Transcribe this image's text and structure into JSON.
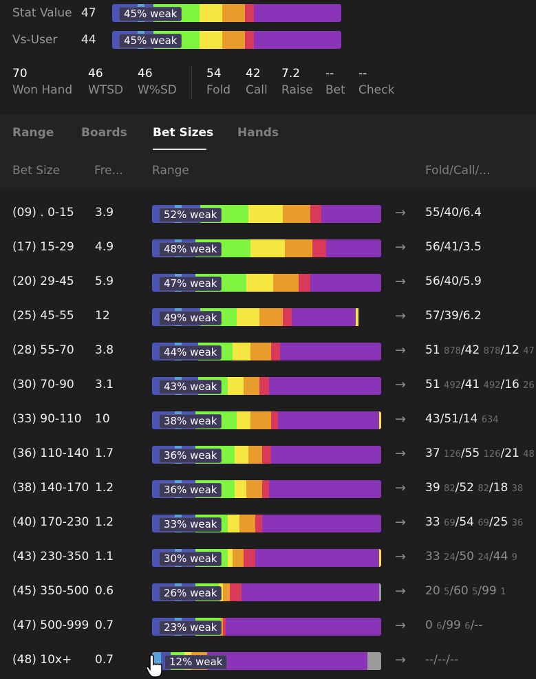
{
  "stats": [
    {
      "label": "Stat Value",
      "value": "47",
      "weak": "45% weak"
    },
    {
      "label": "Vs-User",
      "value": "44",
      "weak": "45% weak"
    }
  ],
  "summary_left": [
    {
      "value": "70",
      "label": "Won Hand"
    },
    {
      "value": "46",
      "label": "WTSD"
    },
    {
      "value": "46",
      "label": "W%SD"
    }
  ],
  "summary_right": [
    {
      "value": "54",
      "label": "Fold"
    },
    {
      "value": "42",
      "label": "Call"
    },
    {
      "value": "7.2",
      "label": "Raise"
    },
    {
      "value": "--",
      "label": "Bet"
    },
    {
      "value": "--",
      "label": "Check"
    }
  ],
  "tabs": [
    "Range",
    "Boards",
    "Bet Sizes",
    "Hands"
  ],
  "active_tab": "Bet Sizes",
  "columns": {
    "bet_size": "Bet Size",
    "freq": "Fre...",
    "range": "Range",
    "fcr": "Fold/Call/..."
  },
  "colors": {
    "blue": "#4b55b8",
    "lightblue": "#5aa3d9",
    "green": "#7ff542",
    "yellow": "#f5e642",
    "orange": "#e89c2e",
    "red": "#d93a5a",
    "purple": "#8a35b8",
    "grey": "#9a9a9a"
  },
  "stat_bars": [
    [
      [
        "blue",
        11
      ],
      [
        "lightblue",
        3
      ],
      [
        "blue",
        4
      ],
      [
        "green",
        20
      ],
      [
        "yellow",
        10
      ],
      [
        "orange",
        10
      ],
      [
        "red",
        4
      ],
      [
        "purple",
        38
      ]
    ],
    [
      [
        "blue",
        11
      ],
      [
        "lightblue",
        3
      ],
      [
        "blue",
        4
      ],
      [
        "green",
        20
      ],
      [
        "yellow",
        10
      ],
      [
        "orange",
        10
      ],
      [
        "red",
        4
      ],
      [
        "purple",
        38
      ]
    ]
  ],
  "rows": [
    {
      "label": "(09) . 0-15",
      "freq": "3.9",
      "weak": "52% weak",
      "fcr": [
        [
          "55/40/6.4",
          ""
        ]
      ],
      "dim": false,
      "bar": [
        [
          "blue",
          10
        ],
        [
          "lightblue",
          3
        ],
        [
          "blue",
          8
        ],
        [
          "green",
          21
        ],
        [
          "yellow",
          15
        ],
        [
          "orange",
          12
        ],
        [
          "red",
          5
        ],
        [
          "purple",
          26
        ]
      ]
    },
    {
      "label": "(17) 15-29",
      "freq": "4.9",
      "weak": "48% weak",
      "fcr": [
        [
          "56/41/3.5",
          ""
        ]
      ],
      "dim": false,
      "bar": [
        [
          "blue",
          10
        ],
        [
          "lightblue",
          3
        ],
        [
          "blue",
          6
        ],
        [
          "green",
          24
        ],
        [
          "yellow",
          15
        ],
        [
          "orange",
          12
        ],
        [
          "red",
          6
        ],
        [
          "purple",
          24
        ]
      ]
    },
    {
      "label": "(20) 29-45",
      "freq": "5.9",
      "weak": "47% weak",
      "fcr": [
        [
          "56/40/5.9",
          ""
        ]
      ],
      "dim": false,
      "bar": [
        [
          "blue",
          10
        ],
        [
          "lightblue",
          3
        ],
        [
          "blue",
          6
        ],
        [
          "green",
          22
        ],
        [
          "yellow",
          12
        ],
        [
          "orange",
          11
        ],
        [
          "red",
          5
        ],
        [
          "purple",
          31
        ]
      ]
    },
    {
      "label": "(25) 45-55",
      "freq": "12",
      "weak": "49% weak",
      "fcr": [
        [
          "57/39/6.2",
          ""
        ]
      ],
      "dim": false,
      "bar": [
        [
          "blue",
          10
        ],
        [
          "lightblue",
          3
        ],
        [
          "blue",
          8
        ],
        [
          "green",
          16
        ],
        [
          "yellow",
          10
        ],
        [
          "orange",
          10
        ],
        [
          "red",
          4
        ],
        [
          "purple",
          28
        ],
        [
          "yellow",
          1
        ]
      ]
    },
    {
      "label": "(28) 55-70",
      "freq": "3.8",
      "weak": "44% weak",
      "fcr": [
        [
          "51 ",
          ""
        ],
        [
          "878",
          "sm"
        ],
        [
          "/42 ",
          ""
        ],
        [
          "878",
          "sm"
        ],
        [
          "/12 ",
          ""
        ],
        [
          "47",
          "sm"
        ]
      ],
      "dim": false,
      "bar": [
        [
          "blue",
          10
        ],
        [
          "lightblue",
          3
        ],
        [
          "blue",
          7
        ],
        [
          "green",
          15
        ],
        [
          "yellow",
          8
        ],
        [
          "orange",
          9
        ],
        [
          "red",
          4
        ],
        [
          "purple",
          44
        ]
      ]
    },
    {
      "label": "(30) 70-90",
      "freq": "3.1",
      "weak": "43% weak",
      "fcr": [
        [
          "51 ",
          ""
        ],
        [
          "492",
          "sm"
        ],
        [
          "/41 ",
          ""
        ],
        [
          "492",
          "sm"
        ],
        [
          "/16 ",
          ""
        ],
        [
          "26",
          "sm"
        ]
      ],
      "dim": false,
      "bar": [
        [
          "blue",
          10
        ],
        [
          "lightblue",
          3
        ],
        [
          "blue",
          7
        ],
        [
          "green",
          13
        ],
        [
          "yellow",
          7
        ],
        [
          "orange",
          7
        ],
        [
          "red",
          4
        ],
        [
          "purple",
          49
        ]
      ]
    },
    {
      "label": "(33) 90-110",
      "freq": "10",
      "weak": "38% weak",
      "fcr": [
        [
          "43/51/14 ",
          ""
        ],
        [
          "634",
          "sm"
        ]
      ],
      "dim": false,
      "bar": [
        [
          "blue",
          10
        ],
        [
          "lightblue",
          3
        ],
        [
          "blue",
          6
        ],
        [
          "green",
          18
        ],
        [
          "yellow",
          6
        ],
        [
          "orange",
          9
        ],
        [
          "red",
          3
        ],
        [
          "purple",
          44
        ],
        [
          "yellow",
          1
        ]
      ]
    },
    {
      "label": "(36) 110-140",
      "freq": "1.7",
      "weak": "36% weak",
      "fcr": [
        [
          "37 ",
          ""
        ],
        [
          "126",
          "sm"
        ],
        [
          "/55 ",
          ""
        ],
        [
          "126",
          "sm"
        ],
        [
          "/21 ",
          ""
        ],
        [
          "48",
          "sm"
        ]
      ],
      "dim": false,
      "bar": [
        [
          "blue",
          10
        ],
        [
          "lightblue",
          3
        ],
        [
          "blue",
          6
        ],
        [
          "green",
          17
        ],
        [
          "yellow",
          6
        ],
        [
          "orange",
          6
        ],
        [
          "red",
          4
        ],
        [
          "purple",
          48
        ]
      ]
    },
    {
      "label": "(38) 140-170",
      "freq": "1.2",
      "weak": "36% weak",
      "fcr": [
        [
          "39 ",
          ""
        ],
        [
          "82",
          "sm"
        ],
        [
          "/52 ",
          ""
        ],
        [
          "82",
          "sm"
        ],
        [
          "/18 ",
          ""
        ],
        [
          "38",
          "sm"
        ]
      ],
      "dim": false,
      "bar": [
        [
          "blue",
          10
        ],
        [
          "lightblue",
          3
        ],
        [
          "blue",
          6
        ],
        [
          "green",
          17
        ],
        [
          "yellow",
          5
        ],
        [
          "orange",
          7
        ],
        [
          "red",
          3
        ],
        [
          "purple",
          49
        ]
      ]
    },
    {
      "label": "(40) 170-230",
      "freq": "1.2",
      "weak": "33% weak",
      "fcr": [
        [
          "33 ",
          ""
        ],
        [
          "69",
          "sm"
        ],
        [
          "/54 ",
          ""
        ],
        [
          "69",
          "sm"
        ],
        [
          "/25 ",
          ""
        ],
        [
          "36",
          "sm"
        ]
      ],
      "dim": false,
      "bar": [
        [
          "blue",
          10
        ],
        [
          "lightblue",
          3
        ],
        [
          "blue",
          6
        ],
        [
          "green",
          14
        ],
        [
          "yellow",
          5
        ],
        [
          "orange",
          7
        ],
        [
          "red",
          3
        ],
        [
          "purple",
          52
        ]
      ]
    },
    {
      "label": "(43) 230-350",
      "freq": "1.1",
      "weak": "30% weak",
      "fcr": [
        [
          "33 ",
          ""
        ],
        [
          "24",
          "sm"
        ],
        [
          "/50 ",
          ""
        ],
        [
          "24",
          "sm"
        ],
        [
          "/44 ",
          ""
        ],
        [
          "9",
          "sm"
        ]
      ],
      "dim": true,
      "bar": [
        [
          "blue",
          10
        ],
        [
          "lightblue",
          3
        ],
        [
          "blue",
          6
        ],
        [
          "green",
          14
        ],
        [
          "yellow",
          2
        ],
        [
          "orange",
          5
        ],
        [
          "red",
          5
        ],
        [
          "purple",
          54
        ],
        [
          "yellow",
          1
        ]
      ]
    },
    {
      "label": "(45) 350-500",
      "freq": "0.6",
      "weak": "26% weak",
      "fcr": [
        [
          "20 ",
          ""
        ],
        [
          "5",
          "sm"
        ],
        [
          "/60 ",
          ""
        ],
        [
          "5",
          "sm"
        ],
        [
          "/99 ",
          ""
        ],
        [
          "1",
          "sm"
        ]
      ],
      "dim": true,
      "bar": [
        [
          "blue",
          10
        ],
        [
          "lightblue",
          3
        ],
        [
          "blue",
          6
        ],
        [
          "green",
          10
        ],
        [
          "yellow",
          2
        ],
        [
          "orange",
          3
        ],
        [
          "red",
          5
        ],
        [
          "purple",
          60
        ],
        [
          "grey",
          1
        ]
      ]
    },
    {
      "label": "(47) 500-999",
      "freq": "0.7",
      "weak": "23% weak",
      "fcr": [
        [
          "0 ",
          ""
        ],
        [
          "6",
          "sm"
        ],
        [
          "/99 ",
          ""
        ],
        [
          "6",
          "sm"
        ],
        [
          "/--",
          ""
        ]
      ],
      "dim": true,
      "bar": [
        [
          "blue",
          10
        ],
        [
          "lightblue",
          3
        ],
        [
          "blue",
          6
        ],
        [
          "green",
          11
        ],
        [
          "orange",
          1
        ],
        [
          "red",
          1
        ],
        [
          "purple",
          68
        ]
      ]
    },
    {
      "label": "(48) 10x+",
      "freq": "0.7",
      "weak": "12% weak",
      "fcr": [
        [
          "--/--/--",
          ""
        ]
      ],
      "dim": true,
      "bar": [
        [
          "lightblue",
          4
        ],
        [
          "blue",
          4
        ],
        [
          "green",
          6
        ],
        [
          "yellow",
          3
        ],
        [
          "orange",
          7
        ],
        [
          "purple",
          70
        ],
        [
          "grey",
          6
        ]
      ]
    }
  ]
}
